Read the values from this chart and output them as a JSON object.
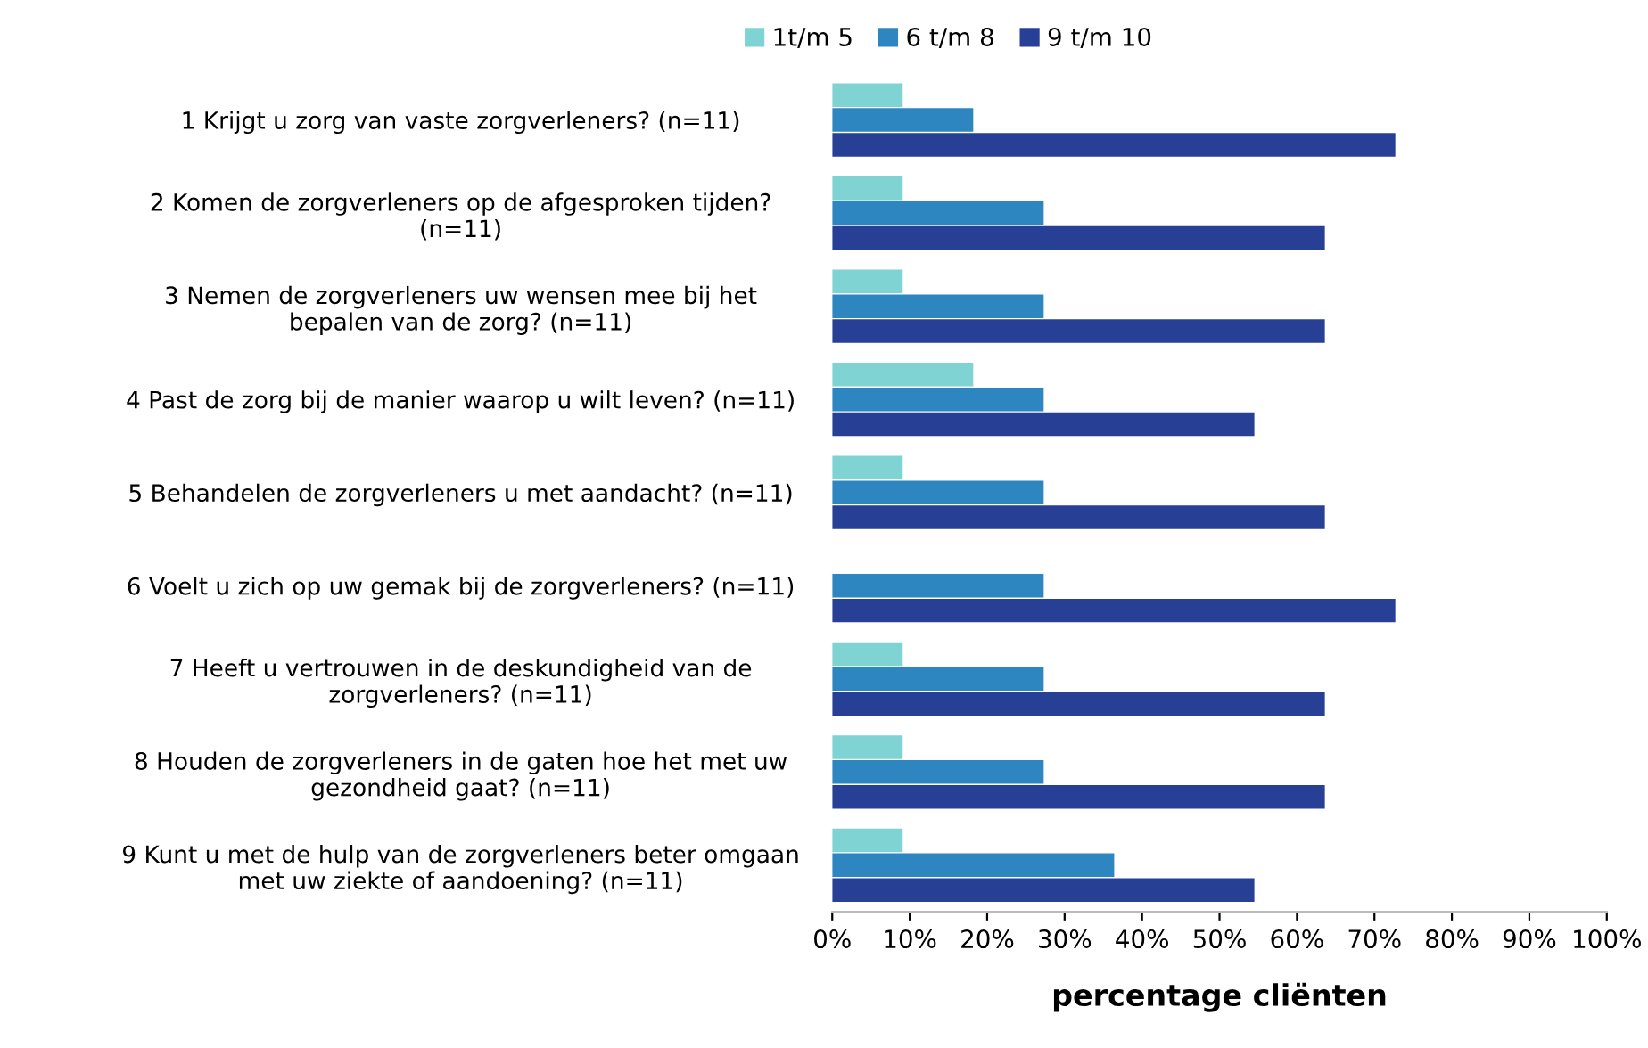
{
  "chart_data": {
    "type": "bar",
    "orientation": "horizontal",
    "xlabel": "percentage cliënten",
    "categories": [
      "1 Krijgt u zorg van vaste zorgverleners? (n=11)",
      "2 Komen de zorgverleners op de afgesproken tijden?\n(n=11)",
      "3 Nemen de zorgverleners uw wensen mee bij het\nbepalen van de zorg? (n=11)",
      "4 Past de zorg bij de manier waarop u wilt leven? (n=11)",
      "5 Behandelen de zorgverleners u met aandacht? (n=11)",
      "6 Voelt u zich op uw gemak bij de zorgverleners? (n=11)",
      "7 Heeft u vertrouwen in de deskundigheid van de\nzorgverleners? (n=11)",
      "8 Houden de zorgverleners in de gaten hoe het met uw\ngezondheid gaat? (n=11)",
      "9 Kunt u met de hulp van de zorgverleners beter omgaan\nmet uw ziekte of aandoening? (n=11)"
    ],
    "series": [
      {
        "name": "1t/m 5",
        "color": "#7fd3d3",
        "values": [
          9.1,
          9.1,
          9.1,
          18.2,
          9.1,
          0,
          9.1,
          9.1,
          9.1
        ]
      },
      {
        "name": "6 t/m 8",
        "color": "#2e86c1",
        "values": [
          18.2,
          27.3,
          27.3,
          27.3,
          27.3,
          27.3,
          27.3,
          27.3,
          36.4
        ]
      },
      {
        "name": "9 t/m 10",
        "color": "#283f96",
        "values": [
          72.7,
          63.6,
          63.6,
          54.5,
          63.6,
          72.7,
          63.6,
          63.6,
          54.5
        ]
      }
    ],
    "xlim": [
      0,
      100
    ],
    "xticks": [
      {
        "value": 0,
        "label": "0%"
      },
      {
        "value": 10,
        "label": "10%"
      },
      {
        "value": 20,
        "label": "20%"
      },
      {
        "value": 30,
        "label": "30%"
      },
      {
        "value": 40,
        "label": "40%"
      },
      {
        "value": 50,
        "label": "50%"
      },
      {
        "value": 60,
        "label": "60%"
      },
      {
        "value": 70,
        "label": "70%"
      },
      {
        "value": 80,
        "label": "80%"
      },
      {
        "value": 90,
        "label": "90%"
      },
      {
        "value": 100,
        "label": "100%"
      }
    ],
    "grid": false,
    "legend": "top"
  }
}
